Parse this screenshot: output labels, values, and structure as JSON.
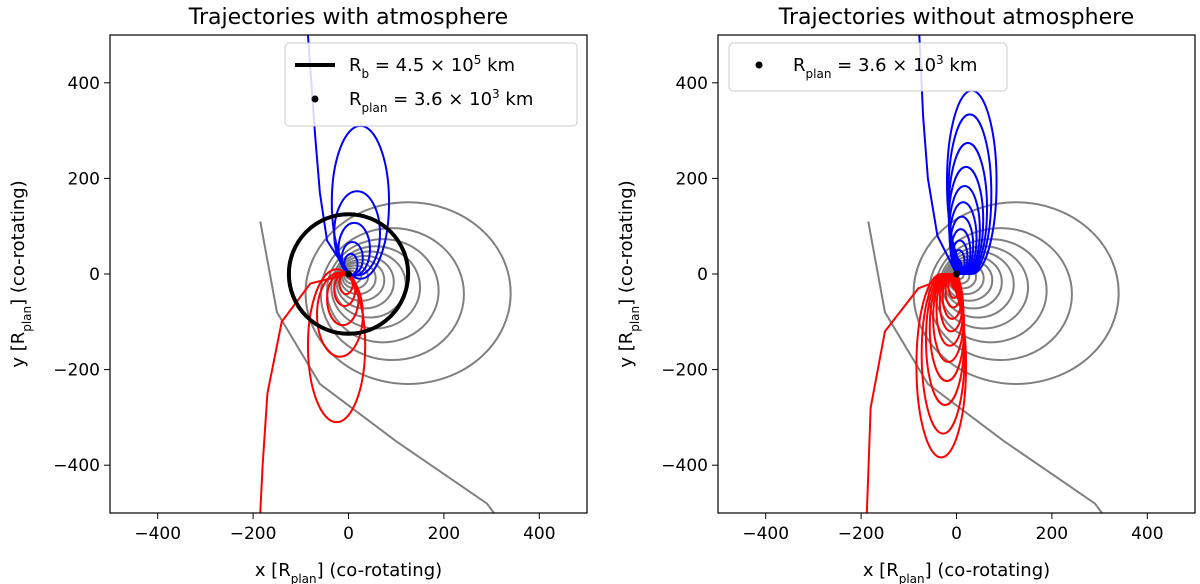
{
  "chart_data": [
    {
      "type": "line",
      "title": "Trajectories with atmosphere",
      "xlabel": "x [R_plan] (co-rotating)",
      "ylabel": "y [R_plan] (co-rotating)",
      "xlim": [
        -500,
        500
      ],
      "ylim": [
        -500,
        500
      ],
      "xticks": [
        -400,
        -200,
        0,
        200,
        400
      ],
      "yticks": [
        -400,
        -200,
        0,
        200,
        400
      ],
      "xtick_labels": [
        "−400",
        "−200",
        "0",
        "200",
        "400"
      ],
      "ytick_labels": [
        "−400",
        "−200",
        "0",
        "200",
        "400"
      ],
      "grid": false,
      "legend_position": "top-right",
      "legend": [
        {
          "marker": "line",
          "color": "#000000",
          "label_main": "R",
          "label_sub": "b",
          "label_rest": " = 4.5 × 10",
          "label_sup": "5",
          "label_unit": " km"
        },
        {
          "marker": "dot",
          "color": "#000000",
          "label_main": "R",
          "label_sub": "plan",
          "label_rest": " = 3.6 × 10",
          "label_sup": "3",
          "label_unit": " km"
        }
      ],
      "circle": {
        "cx": 0,
        "cy": 0,
        "r": 125,
        "color": "#000000"
      },
      "planet": {
        "x": 0,
        "y": 0
      },
      "colors": {
        "grey": "#808080",
        "blue": "#0000ff",
        "red": "#ff0000"
      },
      "grey_orbits": [
        {
          "cx": 5,
          "cy": -2,
          "rx": 10,
          "ry": 9
        },
        {
          "cx": 9,
          "cy": -4,
          "rx": 18,
          "ry": 16
        },
        {
          "cx": 14,
          "cy": -6,
          "rx": 27,
          "ry": 24
        },
        {
          "cx": 20,
          "cy": -9,
          "rx": 37,
          "ry": 33
        },
        {
          "cx": 27,
          "cy": -13,
          "rx": 48,
          "ry": 43
        },
        {
          "cx": 35,
          "cy": -17,
          "rx": 60,
          "ry": 55
        },
        {
          "cx": 45,
          "cy": -22,
          "rx": 75,
          "ry": 69
        },
        {
          "cx": 57,
          "cy": -28,
          "rx": 93,
          "ry": 86
        },
        {
          "cx": 72,
          "cy": -35,
          "rx": 117,
          "ry": 108
        },
        {
          "cx": 92,
          "cy": -42,
          "rx": 150,
          "ry": 138
        },
        {
          "cx": 125,
          "cy": -40,
          "rx": 215,
          "ry": 190
        }
      ],
      "grey_tail": [
        [
          -185,
          110
        ],
        [
          -150,
          -80
        ],
        [
          -60,
          -230
        ],
        [
          100,
          -350
        ],
        [
          290,
          -480
        ],
        [
          305,
          -500
        ]
      ],
      "blue_loops": [
        {
          "cx": 5,
          "cy": 20,
          "rx": 14,
          "ry": 22
        },
        {
          "cx": 8,
          "cy": 33,
          "rx": 22,
          "ry": 34
        },
        {
          "cx": 12,
          "cy": 52,
          "rx": 33,
          "ry": 55
        },
        {
          "cx": 18,
          "cy": 85,
          "rx": 48,
          "ry": 88
        },
        {
          "cx": 25,
          "cy": 150,
          "rx": 60,
          "ry": 160
        }
      ],
      "red_loops": [
        {
          "cx": -5,
          "cy": -20,
          "rx": 14,
          "ry": 22
        },
        {
          "cx": -8,
          "cy": -33,
          "rx": 22,
          "ry": 34
        },
        {
          "cx": -12,
          "cy": -52,
          "rx": 33,
          "ry": 55
        },
        {
          "cx": -18,
          "cy": -85,
          "rx": 48,
          "ry": 88
        },
        {
          "cx": -25,
          "cy": -150,
          "rx": 60,
          "ry": 160
        }
      ],
      "blue_escape": [
        [
          0,
          0
        ],
        [
          -45,
          70
        ],
        [
          -60,
          170
        ],
        [
          -70,
          290
        ],
        [
          -80,
          430
        ],
        [
          -85,
          500
        ]
      ],
      "red_escape": [
        [
          0,
          0
        ],
        [
          -80,
          -20
        ],
        [
          -140,
          -100
        ],
        [
          -170,
          -250
        ],
        [
          -180,
          -400
        ],
        [
          -185,
          -500
        ]
      ]
    },
    {
      "type": "line",
      "title": "Trajectories without atmosphere",
      "xlabel": "x [R_plan] (co-rotating)",
      "ylabel": "y [R_plan] (co-rotating)",
      "xlim": [
        -500,
        500
      ],
      "ylim": [
        -500,
        500
      ],
      "xticks": [
        -400,
        -200,
        0,
        200,
        400
      ],
      "yticks": [
        -400,
        -200,
        0,
        200,
        400
      ],
      "xtick_labels": [
        "−400",
        "−200",
        "0",
        "200",
        "400"
      ],
      "ytick_labels": [
        "−400",
        "−200",
        "0",
        "200",
        "400"
      ],
      "grid": false,
      "legend_position": "top-left",
      "legend": [
        {
          "marker": "dot",
          "color": "#000000",
          "label_main": "R",
          "label_sub": "plan",
          "label_rest": " = 3.6 × 10",
          "label_sup": "3",
          "label_unit": " km"
        }
      ],
      "planet": {
        "x": 0,
        "y": 0
      },
      "colors": {
        "grey": "#808080",
        "blue": "#0000ff",
        "red": "#ff0000"
      },
      "grey_orbits": [
        {
          "cx": 5,
          "cy": -2,
          "rx": 10,
          "ry": 9
        },
        {
          "cx": 9,
          "cy": -4,
          "rx": 18,
          "ry": 16
        },
        {
          "cx": 14,
          "cy": -6,
          "rx": 27,
          "ry": 24
        },
        {
          "cx": 20,
          "cy": -9,
          "rx": 37,
          "ry": 33
        },
        {
          "cx": 27,
          "cy": -13,
          "rx": 48,
          "ry": 43
        },
        {
          "cx": 35,
          "cy": -17,
          "rx": 60,
          "ry": 55
        },
        {
          "cx": 45,
          "cy": -22,
          "rx": 75,
          "ry": 69
        },
        {
          "cx": 57,
          "cy": -28,
          "rx": 93,
          "ry": 86
        },
        {
          "cx": 72,
          "cy": -35,
          "rx": 117,
          "ry": 108
        },
        {
          "cx": 92,
          "cy": -42,
          "rx": 150,
          "ry": 138
        },
        {
          "cx": 125,
          "cy": -40,
          "rx": 215,
          "ry": 190
        }
      ],
      "grey_tail": [
        [
          -185,
          110
        ],
        [
          -150,
          -80
        ],
        [
          -60,
          -230
        ],
        [
          100,
          -350
        ],
        [
          290,
          -480
        ],
        [
          305,
          -500
        ]
      ],
      "blue_loops": [
        {
          "cx": 3,
          "cy": 15,
          "rx": 8,
          "ry": 15
        },
        {
          "cx": 5,
          "cy": 25,
          "rx": 12,
          "ry": 25
        },
        {
          "cx": 7,
          "cy": 35,
          "rx": 16,
          "ry": 35
        },
        {
          "cx": 9,
          "cy": 47,
          "rx": 20,
          "ry": 47
        },
        {
          "cx": 11,
          "cy": 60,
          "rx": 24,
          "ry": 60
        },
        {
          "cx": 14,
          "cy": 75,
          "rx": 28,
          "ry": 75
        },
        {
          "cx": 17,
          "cy": 92,
          "rx": 32,
          "ry": 92
        },
        {
          "cx": 20,
          "cy": 112,
          "rx": 36,
          "ry": 112
        },
        {
          "cx": 24,
          "cy": 137,
          "rx": 40,
          "ry": 137
        },
        {
          "cx": 28,
          "cy": 167,
          "rx": 45,
          "ry": 167
        },
        {
          "cx": 32,
          "cy": 192,
          "rx": 52,
          "ry": 192
        }
      ],
      "red_loops": [
        {
          "cx": -3,
          "cy": -15,
          "rx": 8,
          "ry": 15
        },
        {
          "cx": -5,
          "cy": -25,
          "rx": 12,
          "ry": 25
        },
        {
          "cx": -7,
          "cy": -35,
          "rx": 16,
          "ry": 35
        },
        {
          "cx": -9,
          "cy": -47,
          "rx": 20,
          "ry": 47
        },
        {
          "cx": -11,
          "cy": -60,
          "rx": 24,
          "ry": 60
        },
        {
          "cx": -14,
          "cy": -75,
          "rx": 28,
          "ry": 75
        },
        {
          "cx": -17,
          "cy": -92,
          "rx": 32,
          "ry": 92
        },
        {
          "cx": -20,
          "cy": -112,
          "rx": 36,
          "ry": 112
        },
        {
          "cx": -24,
          "cy": -137,
          "rx": 40,
          "ry": 137
        },
        {
          "cx": -28,
          "cy": -167,
          "rx": 45,
          "ry": 167
        },
        {
          "cx": -32,
          "cy": -192,
          "rx": 52,
          "ry": 192
        }
      ],
      "blue_escape": [
        [
          0,
          0
        ],
        [
          -40,
          80
        ],
        [
          -60,
          200
        ],
        [
          -70,
          330
        ],
        [
          -75,
          440
        ],
        [
          -78,
          500
        ]
      ],
      "red_escape": [
        [
          0,
          0
        ],
        [
          -80,
          -30
        ],
        [
          -150,
          -120
        ],
        [
          -180,
          -280
        ],
        [
          -185,
          -420
        ],
        [
          -188,
          -500
        ]
      ]
    }
  ]
}
